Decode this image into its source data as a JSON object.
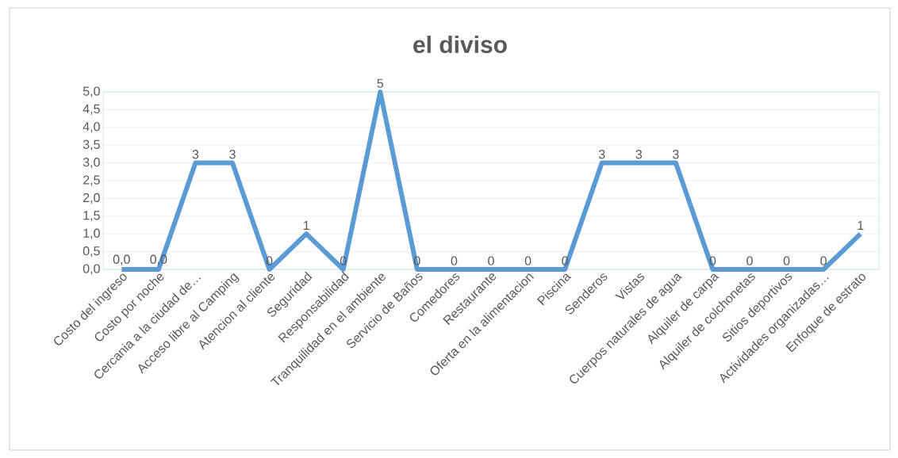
{
  "chart_data": {
    "type": "line",
    "title": "el diviso",
    "categories": [
      "Costo del ingreso",
      "Costo por noche",
      "Cercania a la ciudad de…",
      "Acceso libre al Camping",
      "Atencion al cliente",
      "Seguridad",
      "Responsabilidad",
      "Tranquilidad en el ambiente",
      "Servicio de Baños",
      "Comedores",
      "Restaurante",
      "Oferta en la alimentacion",
      "Piscina",
      "Senderos",
      "Vistas",
      "Cuerpos naturales de agua",
      "Alquiler de carpa",
      "Alquiler de colchonetas",
      "Sitios deportivos",
      "Actividades organizadas…",
      "Enfoque de estrato"
    ],
    "series": [
      {
        "color": "#5b9bd5",
        "values": [
          0,
          0,
          3,
          3,
          0,
          1,
          0,
          5,
          0,
          0,
          0,
          0,
          0,
          3,
          3,
          3,
          0,
          0,
          0,
          0,
          1
        ],
        "value_labels": [
          "0,0",
          "0,0",
          "3",
          "3",
          "0",
          "1",
          "0",
          "5",
          "0",
          "0",
          "0",
          "0",
          "0",
          "3",
          "3",
          "3",
          "0",
          "0",
          "0",
          "0",
          "1"
        ]
      }
    ],
    "ylim": [
      0,
      5
    ],
    "yticks": [
      {
        "value": 0,
        "label": "0,0"
      },
      {
        "value": 0.5,
        "label": "0,5"
      },
      {
        "value": 1,
        "label": "1,0"
      },
      {
        "value": 1.5,
        "label": "1,5"
      },
      {
        "value": 2,
        "label": "2,0"
      },
      {
        "value": 2.5,
        "label": "2,5"
      },
      {
        "value": 3,
        "label": "3,0"
      },
      {
        "value": 3.5,
        "label": "3,5"
      },
      {
        "value": 4,
        "label": "4,0"
      },
      {
        "value": 4.5,
        "label": "4,5"
      },
      {
        "value": 5,
        "label": "5,0"
      }
    ],
    "grid": "y",
    "marker": "none",
    "line_style": "solid"
  }
}
